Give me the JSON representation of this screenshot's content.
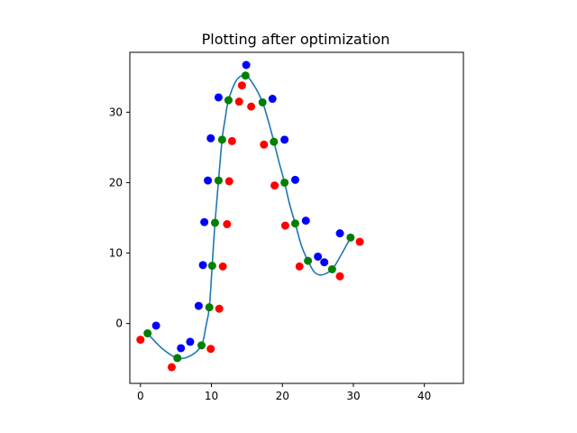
{
  "chart_data": {
    "type": "scatter",
    "title": "Plotting after optimization",
    "xlabel": "",
    "ylabel": "",
    "xlim": [
      -1.5,
      45.5
    ],
    "ylim": [
      -8.5,
      38.5
    ],
    "xticks": [
      0,
      10,
      20,
      30,
      40
    ],
    "yticks": [
      0,
      10,
      20,
      30
    ],
    "grid": false,
    "series": [
      {
        "color": "#0000ff",
        "points": [
          [
            2.2,
            -0.3
          ],
          [
            5.7,
            -3.5
          ],
          [
            7.0,
            -2.6
          ],
          [
            8.2,
            2.5
          ],
          [
            8.8,
            8.3
          ],
          [
            9.0,
            14.4
          ],
          [
            9.5,
            20.3
          ],
          [
            9.9,
            26.3
          ],
          [
            11.0,
            32.1
          ],
          [
            14.9,
            36.7
          ],
          [
            18.6,
            31.9
          ],
          [
            20.3,
            26.1
          ],
          [
            21.8,
            20.4
          ],
          [
            23.3,
            14.6
          ],
          [
            25.0,
            9.5
          ],
          [
            25.9,
            8.7
          ],
          [
            28.1,
            12.8
          ]
        ]
      },
      {
        "color": "#ff0000",
        "points": [
          [
            0.0,
            -2.3
          ],
          [
            4.4,
            -6.2
          ],
          [
            9.9,
            -3.6
          ],
          [
            11.1,
            2.1
          ],
          [
            11.6,
            8.1
          ],
          [
            12.2,
            14.1
          ],
          [
            12.5,
            20.2
          ],
          [
            12.9,
            25.9
          ],
          [
            14.3,
            33.8
          ],
          [
            13.9,
            31.5
          ],
          [
            15.6,
            30.8
          ],
          [
            17.4,
            25.4
          ],
          [
            18.9,
            19.6
          ],
          [
            20.4,
            13.9
          ],
          [
            22.4,
            8.1
          ],
          [
            28.1,
            6.7
          ],
          [
            30.9,
            11.6
          ]
        ]
      },
      {
        "color": "#008000",
        "points": [
          [
            1.0,
            -1.4
          ],
          [
            5.2,
            -4.9
          ],
          [
            8.6,
            -3.1
          ],
          [
            9.7,
            2.3
          ],
          [
            10.1,
            8.2
          ],
          [
            10.5,
            14.3
          ],
          [
            11.0,
            20.3
          ],
          [
            11.5,
            26.1
          ],
          [
            12.4,
            31.7
          ],
          [
            14.8,
            35.2
          ],
          [
            17.2,
            31.4
          ],
          [
            18.8,
            25.8
          ],
          [
            20.3,
            20.0
          ],
          [
            21.8,
            14.2
          ],
          [
            23.6,
            8.9
          ],
          [
            27.0,
            7.7
          ],
          [
            29.6,
            12.2
          ]
        ]
      }
    ],
    "curve": {
      "color": "#1f77b4",
      "x": [
        1.0,
        3.0,
        5.2,
        7.0,
        8.6,
        9.2,
        9.7,
        10.1,
        10.5,
        11.0,
        11.5,
        12.0,
        12.4,
        13.5,
        14.8,
        16.0,
        17.2,
        18.0,
        18.8,
        19.5,
        20.3,
        21.0,
        21.8,
        22.7,
        23.6,
        24.5,
        25.5,
        27.0,
        28.3,
        29.6
      ],
      "y": [
        -1.4,
        -3.5,
        -4.9,
        -4.6,
        -3.1,
        -0.5,
        2.3,
        8.2,
        14.3,
        20.3,
        26.1,
        29.5,
        31.7,
        34.5,
        35.2,
        33.8,
        31.4,
        28.8,
        25.8,
        23.0,
        20.0,
        17.0,
        14.2,
        11.0,
        8.9,
        7.3,
        6.9,
        7.7,
        9.8,
        12.2
      ]
    }
  }
}
